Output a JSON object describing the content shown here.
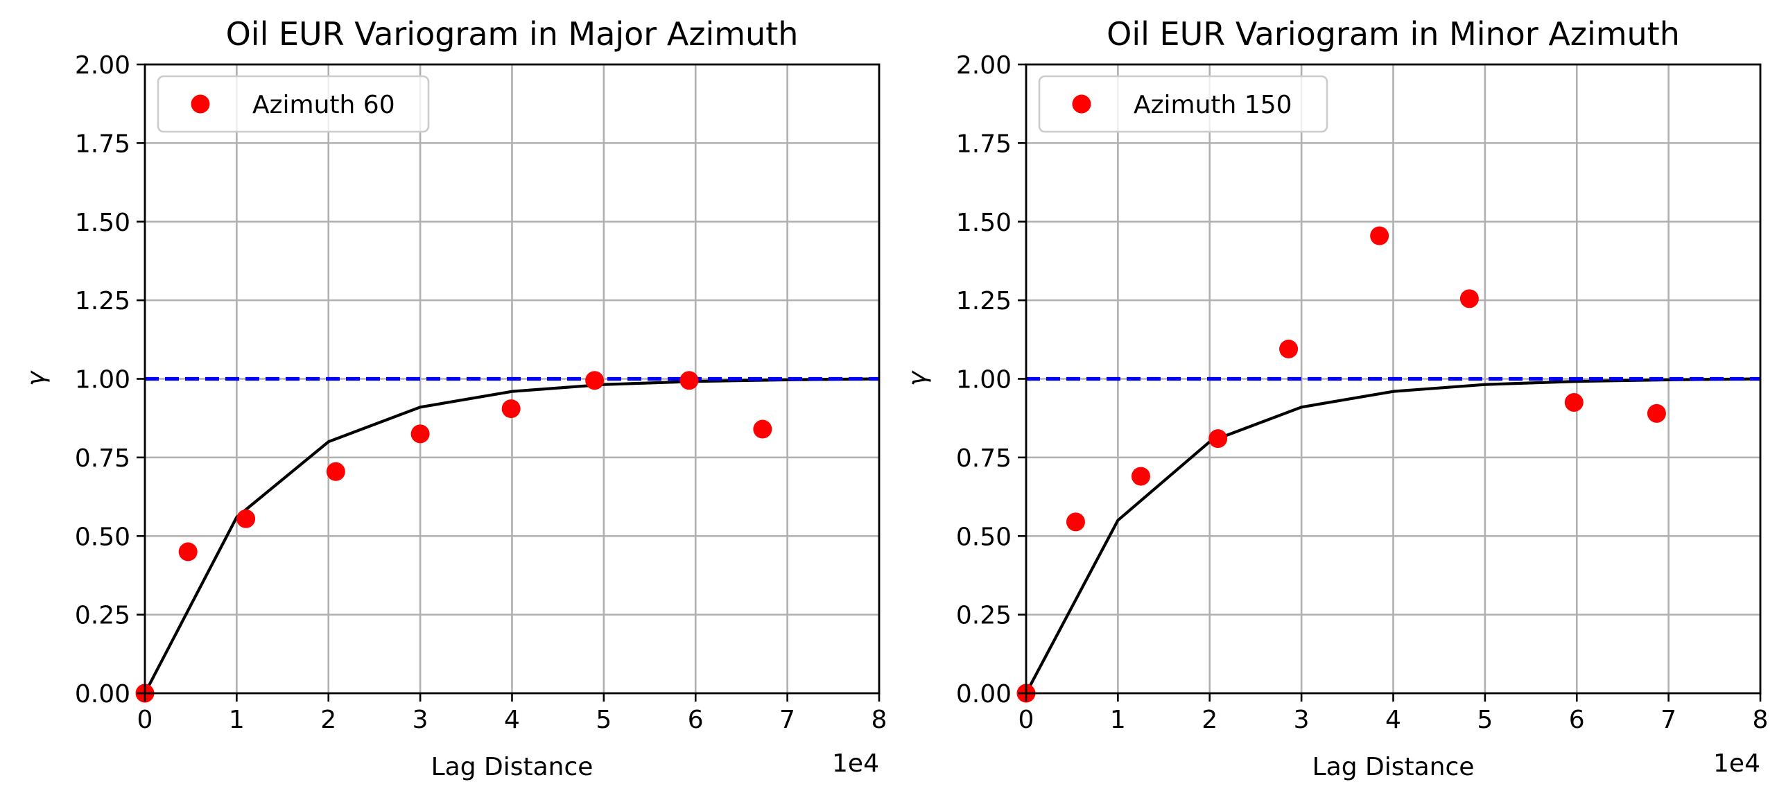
{
  "chart_data": [
    {
      "type": "scatter",
      "title": "Oil EUR Variogram in Major Azimuth",
      "xlabel": "Lag Distance",
      "ylabel": "γ",
      "x_offset_text": "1e4",
      "xlim": [
        0,
        80000
      ],
      "ylim": [
        0,
        2
      ],
      "x_ticks": [
        0,
        10000,
        20000,
        30000,
        40000,
        50000,
        60000,
        70000,
        80000
      ],
      "x_tick_labels": [
        "0",
        "1",
        "2",
        "3",
        "4",
        "5",
        "6",
        "7",
        "8"
      ],
      "y_ticks": [
        0,
        0.25,
        0.5,
        0.75,
        1.0,
        1.25,
        1.5,
        1.75,
        2.0
      ],
      "y_tick_labels": [
        "0.00",
        "0.25",
        "0.50",
        "0.75",
        "1.00",
        "1.25",
        "1.50",
        "1.75",
        "2.00"
      ],
      "grid": true,
      "legend_position": "upper-left",
      "series": [
        {
          "name": "Azimuth 60",
          "kind": "scatter",
          "color": "#ff0000",
          "x": [
            0,
            4700,
            11000,
            20800,
            30000,
            39900,
            49000,
            59300,
            67300
          ],
          "y": [
            0.0,
            0.45,
            0.555,
            0.705,
            0.825,
            0.905,
            0.995,
            0.995,
            0.84
          ]
        },
        {
          "kind": "line",
          "color": "#000000",
          "x": [
            0,
            10000,
            20000,
            30000,
            40000,
            50000,
            60000,
            70000,
            80000
          ],
          "y": [
            0.0,
            0.56,
            0.8,
            0.91,
            0.96,
            0.982,
            0.992,
            0.997,
            1.0
          ]
        },
        {
          "kind": "dashed-line",
          "color": "#0000ff",
          "x": [
            0,
            80000
          ],
          "y": [
            1.0,
            1.0
          ]
        }
      ]
    },
    {
      "type": "scatter",
      "title": "Oil EUR Variogram in Minor Azimuth",
      "xlabel": "Lag Distance",
      "ylabel": "γ",
      "x_offset_text": "1e4",
      "xlim": [
        0,
        80000
      ],
      "ylim": [
        0,
        2
      ],
      "x_ticks": [
        0,
        10000,
        20000,
        30000,
        40000,
        50000,
        60000,
        70000,
        80000
      ],
      "x_tick_labels": [
        "0",
        "1",
        "2",
        "3",
        "4",
        "5",
        "6",
        "7",
        "8"
      ],
      "y_ticks": [
        0,
        0.25,
        0.5,
        0.75,
        1.0,
        1.25,
        1.5,
        1.75,
        2.0
      ],
      "y_tick_labels": [
        "0.00",
        "0.25",
        "0.50",
        "0.75",
        "1.00",
        "1.25",
        "1.50",
        "1.75",
        "2.00"
      ],
      "grid": true,
      "legend_position": "upper-left",
      "series": [
        {
          "name": "Azimuth 150",
          "kind": "scatter",
          "color": "#ff0000",
          "x": [
            0,
            5400,
            12500,
            20900,
            28600,
            38500,
            48300,
            59700,
            68700
          ],
          "y": [
            0.0,
            0.545,
            0.69,
            0.81,
            1.095,
            1.455,
            1.255,
            0.925,
            0.89
          ]
        },
        {
          "kind": "line",
          "color": "#000000",
          "x": [
            0,
            10000,
            20000,
            30000,
            40000,
            50000,
            60000,
            70000,
            80000
          ],
          "y": [
            0.0,
            0.55,
            0.8,
            0.91,
            0.96,
            0.982,
            0.992,
            0.997,
            1.0
          ]
        },
        {
          "kind": "dashed-line",
          "color": "#0000ff",
          "x": [
            0,
            80000
          ],
          "y": [
            1.0,
            1.0
          ]
        }
      ]
    }
  ]
}
